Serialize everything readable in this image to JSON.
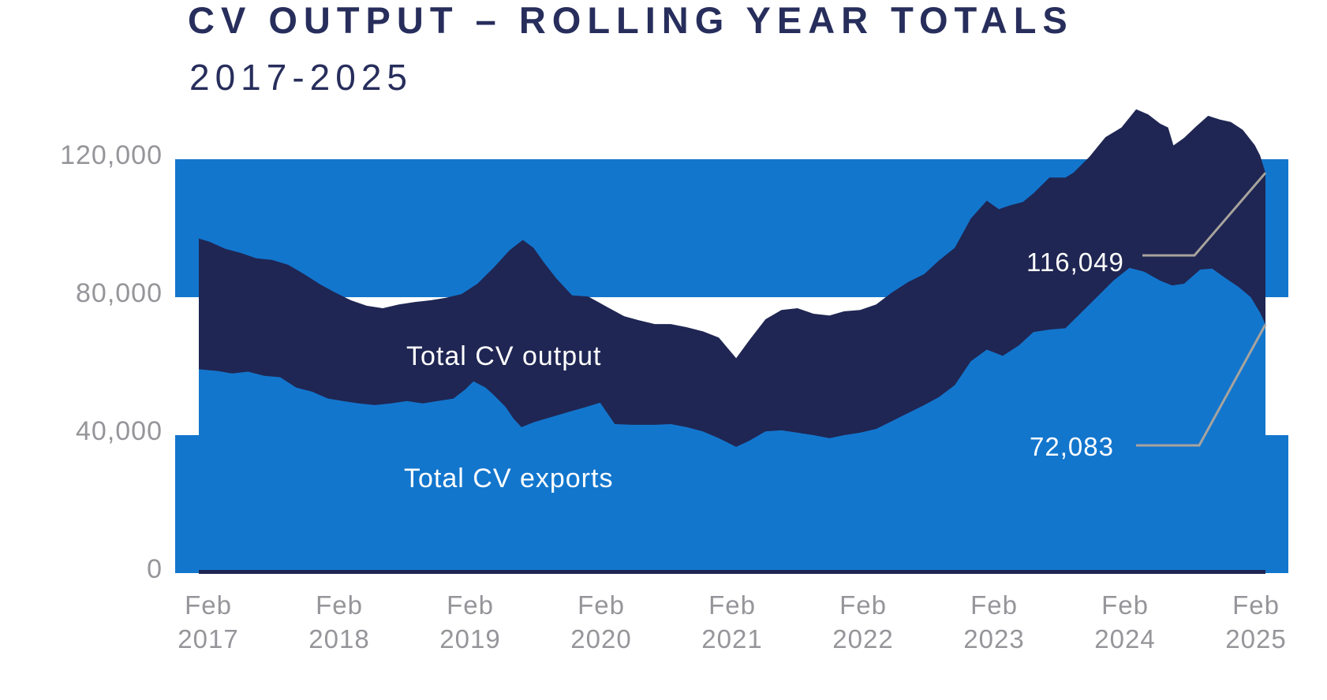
{
  "header": {
    "title": "CV OUTPUT – ROLLING YEAR TOTALS",
    "subtitle": "2017-2025"
  },
  "colors": {
    "band_blue": "#1376CD",
    "area_navy": "#1F2653",
    "title_navy": "#272E5C",
    "axis_gray": "#96959A",
    "leader_gray": "#A8A39D",
    "callout_text": "#FFFFFF"
  },
  "series_labels": {
    "output": "Total CV output",
    "exports": "Total CV exports"
  },
  "callouts": {
    "output_value": "116,049",
    "exports_value": "72,083"
  },
  "chart_data": {
    "type": "area",
    "title": "CV OUTPUT – ROLLING YEAR TOTALS",
    "subtitle": "2017-2025",
    "xlabel": "",
    "ylabel": "",
    "legend": "inline-labels",
    "grid": "alternating horizontal bands (blue/white) every 40,000",
    "x_range": [
      2017,
      2025
    ],
    "ylim": [
      0,
      120000
    ],
    "y_ticks": [
      "120,000",
      "80,000",
      "40,000",
      "0"
    ],
    "y_tick_values": [
      120000,
      80000,
      40000,
      0
    ],
    "x_ticks": [
      {
        "month": "Feb",
        "year": "2017"
      },
      {
        "month": "Feb",
        "year": "2018"
      },
      {
        "month": "Feb",
        "year": "2019"
      },
      {
        "month": "Feb",
        "year": "2020"
      },
      {
        "month": "Feb",
        "year": "2021"
      },
      {
        "month": "Feb",
        "year": "2022"
      },
      {
        "month": "Feb",
        "year": "2023"
      },
      {
        "month": "Feb",
        "year": "2024"
      },
      {
        "month": "Feb",
        "year": "2025"
      }
    ],
    "background_bands": [
      {
        "from": 80000,
        "to": 120000
      },
      {
        "from": 0,
        "to": 40000
      }
    ],
    "series": [
      {
        "name": "Total CV output",
        "color": "#1F2653",
        "end_label": "116,049",
        "end_value": 116049,
        "points": [
          [
            2017.0,
            97000
          ],
          [
            2017.08,
            96100
          ],
          [
            2017.2,
            94000
          ],
          [
            2017.31,
            92900
          ],
          [
            2017.43,
            91300
          ],
          [
            2017.55,
            90800
          ],
          [
            2017.67,
            89400
          ],
          [
            2017.79,
            86700
          ],
          [
            2017.91,
            83700
          ],
          [
            2018.02,
            81400
          ],
          [
            2018.14,
            79100
          ],
          [
            2018.26,
            77500
          ],
          [
            2018.38,
            76800
          ],
          [
            2018.5,
            77900
          ],
          [
            2018.62,
            78600
          ],
          [
            2018.74,
            79100
          ],
          [
            2018.85,
            79800
          ],
          [
            2018.97,
            80900
          ],
          [
            2019.09,
            83900
          ],
          [
            2019.21,
            88500
          ],
          [
            2019.33,
            93600
          ],
          [
            2019.43,
            96600
          ],
          [
            2019.51,
            94300
          ],
          [
            2019.59,
            90000
          ],
          [
            2019.68,
            85500
          ],
          [
            2019.8,
            80500
          ],
          [
            2019.92,
            80200
          ],
          [
            2020.07,
            77000
          ],
          [
            2020.19,
            74500
          ],
          [
            2020.3,
            73300
          ],
          [
            2020.42,
            72200
          ],
          [
            2020.54,
            72200
          ],
          [
            2020.66,
            71300
          ],
          [
            2020.78,
            70100
          ],
          [
            2020.9,
            68300
          ],
          [
            2021.03,
            62300
          ],
          [
            2021.13,
            67600
          ],
          [
            2021.25,
            73600
          ],
          [
            2021.37,
            76300
          ],
          [
            2021.49,
            76800
          ],
          [
            2021.61,
            75200
          ],
          [
            2021.73,
            74700
          ],
          [
            2021.84,
            75900
          ],
          [
            2021.96,
            76300
          ],
          [
            2022.08,
            77900
          ],
          [
            2022.2,
            81400
          ],
          [
            2022.32,
            84400
          ],
          [
            2022.44,
            86700
          ],
          [
            2022.55,
            90600
          ],
          [
            2022.67,
            94300
          ],
          [
            2022.79,
            102800
          ],
          [
            2022.91,
            108000
          ],
          [
            2023.0,
            105500
          ],
          [
            2023.09,
            106700
          ],
          [
            2023.18,
            107600
          ],
          [
            2023.26,
            110100
          ],
          [
            2023.38,
            114700
          ],
          [
            2023.5,
            114700
          ],
          [
            2023.56,
            116100
          ],
          [
            2023.68,
            120700
          ],
          [
            2023.8,
            126400
          ],
          [
            2023.92,
            129200
          ],
          [
            2024.03,
            134500
          ],
          [
            2024.12,
            133000
          ],
          [
            2024.21,
            130300
          ],
          [
            2024.27,
            129200
          ],
          [
            2024.31,
            124000
          ],
          [
            2024.39,
            126200
          ],
          [
            2024.48,
            129500
          ],
          [
            2024.57,
            132600
          ],
          [
            2024.66,
            131500
          ],
          [
            2024.74,
            130800
          ],
          [
            2024.83,
            128500
          ],
          [
            2024.92,
            124100
          ],
          [
            2024.96,
            121100
          ],
          [
            2025.0,
            116049
          ]
        ]
      },
      {
        "name": "Total CV exports",
        "color": "#1376CD",
        "end_label": "72,083",
        "end_value": 72083,
        "points": [
          [
            2017.0,
            59100
          ],
          [
            2017.14,
            58600
          ],
          [
            2017.25,
            57900
          ],
          [
            2017.37,
            58400
          ],
          [
            2017.49,
            57200
          ],
          [
            2017.61,
            56800
          ],
          [
            2017.73,
            53800
          ],
          [
            2017.85,
            52600
          ],
          [
            2017.97,
            50600
          ],
          [
            2018.08,
            49900
          ],
          [
            2018.2,
            49200
          ],
          [
            2018.32,
            48700
          ],
          [
            2018.44,
            49200
          ],
          [
            2018.56,
            49900
          ],
          [
            2018.68,
            49200
          ],
          [
            2018.79,
            49900
          ],
          [
            2018.91,
            50600
          ],
          [
            2019.0,
            53300
          ],
          [
            2019.06,
            55600
          ],
          [
            2019.15,
            53800
          ],
          [
            2019.21,
            51700
          ],
          [
            2019.3,
            48200
          ],
          [
            2019.36,
            44800
          ],
          [
            2019.42,
            42300
          ],
          [
            2019.51,
            43700
          ],
          [
            2019.65,
            45300
          ],
          [
            2019.77,
            46700
          ],
          [
            2019.89,
            48000
          ],
          [
            2020.01,
            49400
          ],
          [
            2020.12,
            43200
          ],
          [
            2020.25,
            43000
          ],
          [
            2020.42,
            43000
          ],
          [
            2020.54,
            43200
          ],
          [
            2020.66,
            42300
          ],
          [
            2020.78,
            41100
          ],
          [
            2020.9,
            39100
          ],
          [
            2021.03,
            36600
          ],
          [
            2021.13,
            38400
          ],
          [
            2021.25,
            41100
          ],
          [
            2021.37,
            41400
          ],
          [
            2021.49,
            40700
          ],
          [
            2021.61,
            40000
          ],
          [
            2021.73,
            39100
          ],
          [
            2021.84,
            40000
          ],
          [
            2021.96,
            40700
          ],
          [
            2022.08,
            41800
          ],
          [
            2022.2,
            44100
          ],
          [
            2022.32,
            46400
          ],
          [
            2022.44,
            48700
          ],
          [
            2022.55,
            51000
          ],
          [
            2022.67,
            54500
          ],
          [
            2022.79,
            61400
          ],
          [
            2022.91,
            64800
          ],
          [
            2023.03,
            63000
          ],
          [
            2023.15,
            66000
          ],
          [
            2023.26,
            69900
          ],
          [
            2023.38,
            70600
          ],
          [
            2023.5,
            71000
          ],
          [
            2023.62,
            75600
          ],
          [
            2023.74,
            80200
          ],
          [
            2023.86,
            84800
          ],
          [
            2023.98,
            88500
          ],
          [
            2024.09,
            87400
          ],
          [
            2024.21,
            84800
          ],
          [
            2024.3,
            83400
          ],
          [
            2024.39,
            83900
          ],
          [
            2024.51,
            88000
          ],
          [
            2024.6,
            88300
          ],
          [
            2024.69,
            85800
          ],
          [
            2024.8,
            82900
          ],
          [
            2024.89,
            80000
          ],
          [
            2024.96,
            75500
          ],
          [
            2025.0,
            72083
          ]
        ]
      }
    ]
  }
}
